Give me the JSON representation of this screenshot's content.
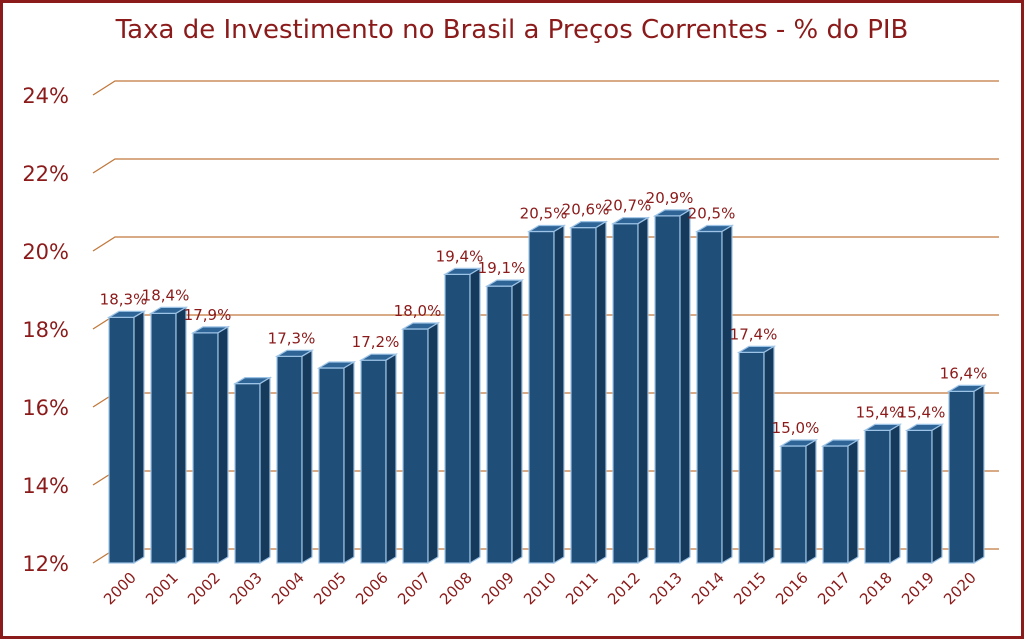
{
  "chart_data": {
    "type": "bar",
    "title": "Taxa de Investimento no Brasil a Preços Correntes - % do PIB",
    "xlabel": "",
    "ylabel": "",
    "ylim": [
      12,
      24
    ],
    "yticks": [
      12,
      14,
      16,
      18,
      20,
      22,
      24
    ],
    "ytick_labels": [
      "12%",
      "14%",
      "16%",
      "18%",
      "20%",
      "22%",
      "24%"
    ],
    "grid": true,
    "categories": [
      "2000",
      "2001",
      "2002",
      "2003",
      "2004",
      "2005",
      "2006",
      "2007",
      "2008",
      "2009",
      "2010",
      "2011",
      "2012",
      "2013",
      "2014",
      "2015",
      "2016",
      "2017",
      "2018",
      "2019",
      "2020"
    ],
    "values": [
      18.3,
      18.4,
      17.9,
      16.6,
      17.3,
      17.0,
      17.2,
      18.0,
      19.4,
      19.1,
      20.5,
      20.6,
      20.7,
      20.9,
      20.5,
      17.4,
      15.0,
      15.0,
      15.4,
      15.4,
      16.4
    ],
    "data_labels": [
      "18,3%",
      "18,4%",
      "17,9%",
      "",
      "17,3%",
      "",
      "17,2%",
      "18,0%",
      "19,4%",
      "19,1%",
      "20,5%",
      "20,6%",
      "20,7%",
      "20,9%",
      "20,5%",
      "17,4%",
      "15,0%",
      "",
      "15,4%",
      "15,4%",
      "16,4%"
    ],
    "colors": {
      "bar": "#1f4e79",
      "bar_top": "#2e6496",
      "bar_side": "#163a5c",
      "bar_edge": "#9dc3e6",
      "grid": "#c0783c",
      "text": "#8b1a1a"
    }
  }
}
